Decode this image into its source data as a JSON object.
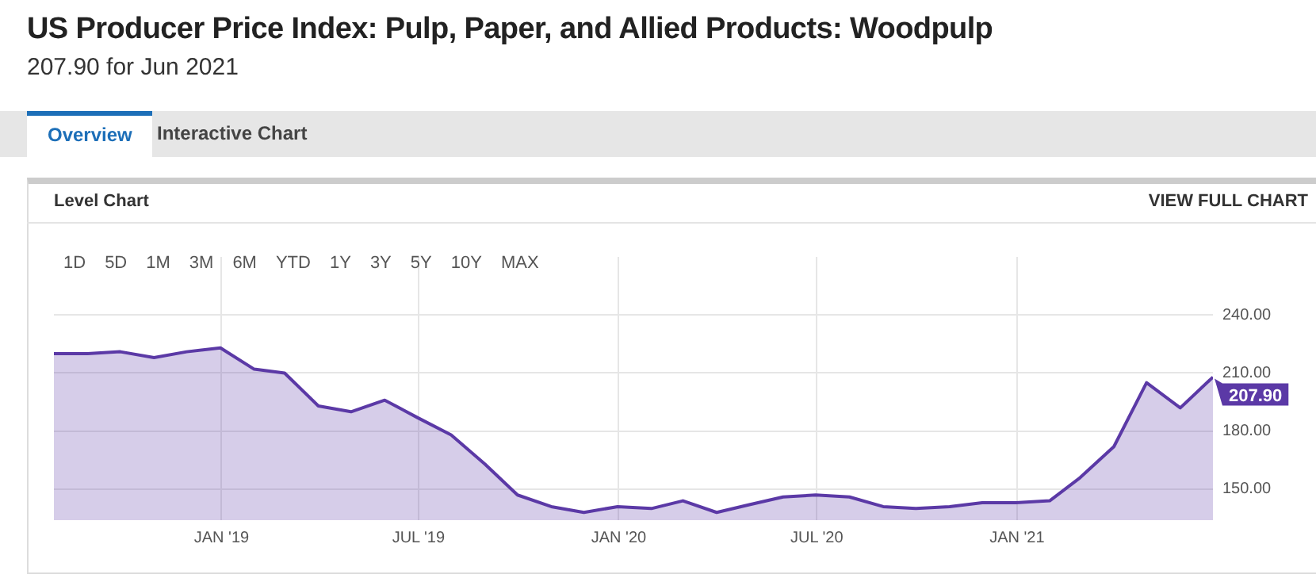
{
  "chart_data": {
    "type": "area",
    "title": "US Producer Price Index: Pulp, Paper, and Allied Products: Woodpulp",
    "subtitle": "207.90 for Jun 2021",
    "annotations": [
      "Overview",
      "Interactive Chart",
      "Level Chart",
      "VIEW FULL CHART",
      "1D",
      "5D",
      "1M",
      "3M",
      "6M",
      "YTD",
      "1Y",
      "3Y",
      "5Y",
      "10Y",
      "MAX"
    ],
    "x": [
      "2018-07-31",
      "2018-08-31",
      "2018-09-30",
      "2018-10-31",
      "2018-11-30",
      "2018-12-31",
      "2019-01-31",
      "2019-02-28",
      "2019-03-31",
      "2019-04-30",
      "2019-05-31",
      "2019-06-30",
      "2019-07-31",
      "2019-08-31",
      "2019-09-30",
      "2019-10-31",
      "2019-11-30",
      "2019-12-31",
      "2020-01-31",
      "2020-02-29",
      "2020-03-31",
      "2020-04-30",
      "2020-05-31",
      "2020-06-30",
      "2020-07-31",
      "2020-08-31",
      "2020-09-30",
      "2020-10-31",
      "2020-11-30",
      "2020-12-31",
      "2021-01-31",
      "2021-02-28",
      "2021-03-31",
      "2021-04-30",
      "2021-05-31",
      "2021-06-30"
    ],
    "series": [
      {
        "color": "#5b39a6",
        "values": [
          220,
          220,
          221,
          218,
          221,
          223,
          212,
          210,
          193,
          190,
          196,
          187,
          178,
          163,
          147,
          141,
          138,
          141,
          140,
          144,
          138,
          142,
          146,
          147,
          146,
          141,
          140,
          141,
          143,
          143,
          144,
          156,
          172,
          205,
          192,
          207.9
        ],
        "value_labels": [
          null,
          null,
          null,
          null,
          null,
          null,
          null,
          null,
          null,
          null,
          null,
          null,
          null,
          null,
          null,
          null,
          null,
          null,
          null,
          null,
          null,
          null,
          null,
          null,
          null,
          null,
          null,
          null,
          null,
          null,
          null,
          null,
          null,
          null,
          null,
          "207.90"
        ]
      }
    ],
    "xlim": [
      "2018-07-31",
      "2021-06-30"
    ],
    "xticks": [
      {
        "value": "2019-01-01",
        "label": "JAN '19"
      },
      {
        "value": "2019-07-01",
        "label": "JUL '19"
      },
      {
        "value": "2020-01-01",
        "label": "JAN '20"
      },
      {
        "value": "2020-07-01",
        "label": "JUL '20"
      },
      {
        "value": "2021-01-01",
        "label": "JAN '21"
      }
    ],
    "ylim": [
      134,
      270
    ],
    "yticks": [
      {
        "value": 150,
        "label": "150.00"
      },
      {
        "value": 180,
        "label": "180.00"
      },
      {
        "value": 210,
        "label": "210.00"
      },
      {
        "value": 240,
        "label": "240.00"
      }
    ],
    "grid": true,
    "legend": false,
    "marker": "none",
    "line_style": "solid"
  }
}
